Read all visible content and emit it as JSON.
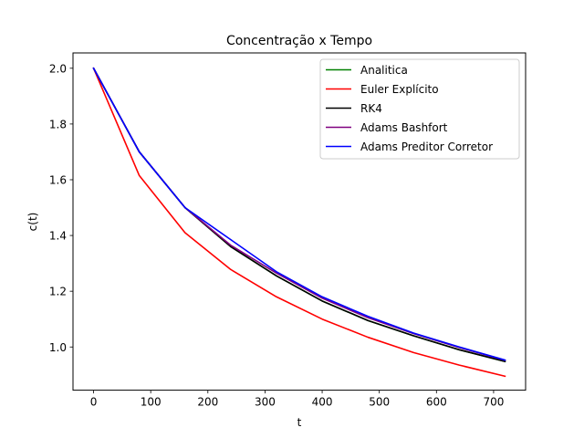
{
  "chart_data": {
    "type": "line",
    "title": "Concentração x Tempo",
    "xlabel": "t",
    "ylabel": "c(t)",
    "xlim": [
      -36,
      756
    ],
    "ylim": [
      0.845,
      2.055
    ],
    "xticks": [
      0,
      100,
      200,
      300,
      400,
      500,
      600,
      700
    ],
    "yticks": [
      1.0,
      1.2,
      1.4,
      1.6,
      1.8,
      2.0
    ],
    "xtick_labels": [
      "0",
      "100",
      "200",
      "300",
      "400",
      "500",
      "600",
      "700"
    ],
    "ytick_labels": [
      "1.0",
      "1.2",
      "1.4",
      "1.6",
      "1.8",
      "2.0"
    ],
    "grid": false,
    "legend_position": "top-right",
    "x": [
      0,
      80,
      160,
      240,
      320,
      400,
      480,
      560,
      640,
      720
    ],
    "series": [
      {
        "name": "Analitica",
        "color": "#008000",
        "values": [
          2.0,
          1.7,
          1.5,
          1.36,
          1.255,
          1.165,
          1.095,
          1.04,
          0.99,
          0.948
        ]
      },
      {
        "name": "Euler Explícito",
        "color": "#ff0000",
        "values": [
          2.0,
          1.615,
          1.41,
          1.278,
          1.18,
          1.1,
          1.035,
          0.98,
          0.935,
          0.895
        ]
      },
      {
        "name": "RK4",
        "color": "#000000",
        "values": [
          2.0,
          1.7,
          1.5,
          1.36,
          1.255,
          1.165,
          1.095,
          1.04,
          0.99,
          0.948
        ]
      },
      {
        "name": "Adams Bashfort",
        "color": "#800080",
        "values": [
          2.0,
          1.7,
          1.5,
          1.365,
          1.265,
          1.175,
          1.105,
          1.048,
          0.998,
          0.952
        ]
      },
      {
        "name": "Adams Preditor Corretor",
        "color": "#0000ff",
        "values": [
          2.0,
          1.7,
          1.5,
          1.385,
          1.27,
          1.18,
          1.11,
          1.05,
          1.0,
          0.953
        ]
      }
    ]
  }
}
